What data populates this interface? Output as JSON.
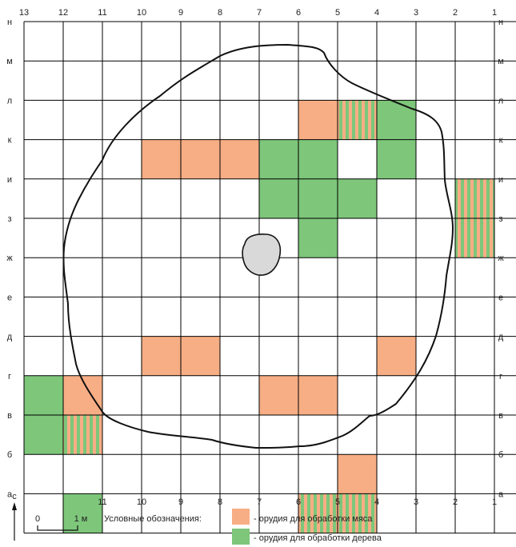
{
  "grid": {
    "column_labels": [
      "13",
      "12",
      "11",
      "10",
      "9",
      "8",
      "7",
      "6",
      "5",
      "4",
      "3",
      "2",
      "1"
    ],
    "bottom_labels": [
      "11",
      "10",
      "9",
      "8",
      "7",
      "6",
      "5",
      "4",
      "3",
      "2",
      "1"
    ],
    "row_labels_top_to_bottom": [
      "н",
      "м",
      "л",
      "к",
      "и",
      "з",
      "ж",
      "е",
      "д",
      "г",
      "в",
      "б",
      "а"
    ],
    "grid_color": "#000000",
    "meat_color": "#F7AE85",
    "wood_color": "#7DC67A",
    "stripe_color": "#7DC67A"
  },
  "cells": [
    {
      "col": 6,
      "row": "л",
      "type": "meat"
    },
    {
      "col": 5,
      "row": "л",
      "type": "mixed"
    },
    {
      "col": 4,
      "row": "л",
      "type": "wood"
    },
    {
      "col": 10,
      "row": "к",
      "type": "meat"
    },
    {
      "col": 9,
      "row": "к",
      "type": "meat"
    },
    {
      "col": 8,
      "row": "к",
      "type": "meat"
    },
    {
      "col": 7,
      "row": "к",
      "type": "wood"
    },
    {
      "col": 6,
      "row": "к",
      "type": "wood"
    },
    {
      "col": 4,
      "row": "к",
      "type": "wood"
    },
    {
      "col": 7,
      "row": "и",
      "type": "wood"
    },
    {
      "col": 6,
      "row": "и",
      "type": "wood"
    },
    {
      "col": 5,
      "row": "и",
      "type": "wood"
    },
    {
      "col": 2,
      "row": "и",
      "type": "mixed"
    },
    {
      "col": 6,
      "row": "з",
      "type": "wood"
    },
    {
      "col": 2,
      "row": "з",
      "type": "mixed"
    },
    {
      "col": 10,
      "row": "д",
      "type": "meat"
    },
    {
      "col": 9,
      "row": "д",
      "type": "meat"
    },
    {
      "col": 4,
      "row": "д",
      "type": "meat"
    },
    {
      "col": 13,
      "row": "г",
      "type": "wood"
    },
    {
      "col": 12,
      "row": "г",
      "type": "meat"
    },
    {
      "col": 7,
      "row": "г",
      "type": "meat"
    },
    {
      "col": 6,
      "row": "г",
      "type": "meat"
    },
    {
      "col": 13,
      "row": "в",
      "type": "wood"
    },
    {
      "col": 12,
      "row": "в",
      "type": "mixed"
    },
    {
      "col": 5,
      "row": "б",
      "type": "meat"
    },
    {
      "col": 12,
      "row": "а",
      "type": "wood"
    },
    {
      "col": 6,
      "row": "а",
      "type": "mixed"
    },
    {
      "col": 5,
      "row": "а",
      "type": "mixed"
    }
  ],
  "north_label": "с",
  "scale": {
    "start": "0",
    "end": "1 м"
  },
  "legend": {
    "title": "Условные обозначения:",
    "items": [
      {
        "key": "meat",
        "label": "- орудия для обработки мяса"
      },
      {
        "key": "wood",
        "label": "- орудия для обработки дерева"
      }
    ]
  }
}
